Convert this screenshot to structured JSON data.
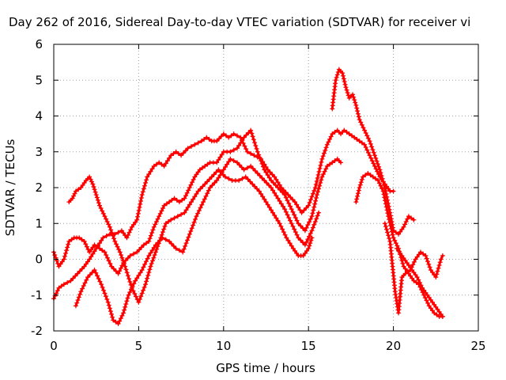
{
  "chart_data": {
    "type": "scatter",
    "title": "Day 262 of 2016, Sidereal Day-to-day VTEC variation (SDTVAR) for receiver vi",
    "xlabel": "GPS time / hours",
    "ylabel": "SDTVAR / TECUs",
    "xlim": [
      0,
      25
    ],
    "ylim": [
      -2,
      6
    ],
    "xticks": [
      0,
      5,
      10,
      15,
      20,
      25
    ],
    "yticks": [
      -2,
      -1,
      0,
      1,
      2,
      3,
      4,
      5,
      6
    ],
    "grid": true,
    "marker": "plus",
    "color": "#ff0000",
    "series": [
      {
        "x": [
          0.0,
          0.3,
          0.6,
          1.0,
          1.4,
          1.8,
          2.1,
          2.5,
          2.9,
          3.3,
          3.6,
          4.0,
          4.3,
          4.6,
          4.9,
          5.2,
          5.5,
          5.9,
          6.2,
          6.5,
          6.9,
          7.2,
          7.5,
          7.9,
          8.3,
          8.7,
          9.0,
          9.3,
          9.6,
          10.0,
          10.3,
          10.6,
          11.0,
          11.4,
          11.8,
          12.2,
          12.6,
          13.0,
          13.4,
          13.8,
          14.2,
          14.6,
          15.0,
          15.4,
          15.8,
          16.1,
          16.4,
          16.7,
          16.9,
          17.1,
          17.4,
          17.7,
          18.0,
          18.3,
          18.6,
          18.9,
          19.2,
          19.5,
          19.8,
          20.0
        ],
        "y": [
          -1.1,
          -0.8,
          -0.7,
          -0.6,
          -0.4,
          -0.2,
          0.0,
          0.3,
          0.6,
          0.7,
          0.7,
          0.8,
          0.6,
          0.9,
          1.1,
          1.8,
          2.3,
          2.6,
          2.7,
          2.6,
          2.9,
          3.0,
          2.9,
          3.1,
          3.2,
          3.3,
          3.4,
          3.3,
          3.3,
          3.5,
          3.4,
          3.5,
          3.4,
          3.0,
          2.9,
          2.8,
          2.5,
          2.3,
          2.0,
          1.8,
          1.6,
          1.3,
          1.5,
          2.0,
          2.8,
          3.2,
          3.5,
          3.6,
          3.5,
          3.6,
          3.5,
          3.4,
          3.3,
          3.2,
          2.9,
          2.6,
          2.3,
          2.1,
          1.9,
          1.9
        ]
      },
      {
        "x": [
          0.0,
          0.3,
          0.6,
          0.9,
          1.2,
          1.5,
          1.8,
          2.1,
          2.4,
          2.7,
          3.0,
          3.4,
          3.8,
          4.1,
          4.5,
          4.9,
          5.3,
          5.6,
          5.9,
          6.2,
          6.5,
          6.8,
          7.1,
          7.4,
          7.7,
          8.0,
          8.3,
          8.6,
          8.9,
          9.2,
          9.6,
          10.0,
          10.4,
          10.8,
          11.2,
          11.6,
          12.0,
          12.4,
          12.8,
          13.2,
          13.6,
          14.0,
          14.4,
          14.8,
          15.2,
          15.5,
          15.8,
          16.1,
          16.4,
          16.7,
          16.9
        ],
        "y": [
          0.2,
          -0.2,
          0.0,
          0.5,
          0.6,
          0.6,
          0.5,
          0.2,
          0.4,
          0.3,
          0.2,
          -0.2,
          -0.4,
          -0.1,
          0.1,
          0.2,
          0.4,
          0.5,
          0.9,
          1.2,
          1.5,
          1.6,
          1.7,
          1.6,
          1.7,
          2.0,
          2.3,
          2.5,
          2.6,
          2.7,
          2.7,
          3.0,
          3.0,
          3.1,
          3.4,
          3.6,
          3.0,
          2.5,
          2.2,
          2.0,
          1.8,
          1.4,
          1.0,
          0.8,
          1.2,
          1.8,
          2.3,
          2.6,
          2.7,
          2.8,
          2.7
        ]
      },
      {
        "x": [
          0.9,
          1.1,
          1.3,
          1.6,
          1.9,
          2.1,
          2.3,
          2.5,
          2.7,
          3.0,
          3.3,
          3.6,
          3.9,
          4.2,
          4.6,
          5.0,
          5.4,
          5.7,
          6.0,
          6.3,
          6.6,
          6.9,
          7.3,
          7.7,
          8.1,
          8.5,
          8.9,
          9.3,
          9.7,
          10.1,
          10.5,
          10.9,
          11.3,
          11.7,
          12.1,
          12.5,
          12.9,
          13.3,
          13.7,
          14.1,
          14.4,
          14.7,
          15.0,
          15.2
        ],
        "y": [
          1.6,
          1.7,
          1.9,
          2.0,
          2.2,
          2.3,
          2.1,
          1.8,
          1.5,
          1.2,
          0.9,
          0.5,
          0.2,
          -0.2,
          -0.8,
          -1.2,
          -0.7,
          -0.2,
          0.2,
          0.6,
          1.0,
          1.1,
          1.2,
          1.3,
          1.6,
          1.9,
          2.1,
          2.3,
          2.5,
          2.3,
          2.2,
          2.2,
          2.3,
          2.1,
          1.9,
          1.6,
          1.3,
          1.0,
          0.6,
          0.3,
          0.1,
          0.1,
          0.3,
          0.6
        ]
      },
      {
        "x": [
          1.3,
          1.6,
          2.0,
          2.4,
          2.8,
          3.2,
          3.5,
          3.8,
          4.1,
          4.4,
          4.8,
          5.2,
          5.6,
          6.0,
          6.4,
          6.8,
          7.2,
          7.6,
          8.0,
          8.4,
          8.8,
          9.2,
          9.6,
          10.0,
          10.4,
          10.8,
          11.2,
          11.6,
          12.0,
          12.4,
          12.8,
          13.2,
          13.6,
          14.0,
          14.4,
          14.8,
          15.2,
          15.6
        ],
        "y": [
          -1.3,
          -0.9,
          -0.5,
          -0.3,
          -0.7,
          -1.2,
          -1.7,
          -1.8,
          -1.5,
          -1.0,
          -0.6,
          -0.3,
          0.1,
          0.4,
          0.6,
          0.5,
          0.3,
          0.2,
          0.7,
          1.2,
          1.6,
          2.0,
          2.2,
          2.5,
          2.8,
          2.7,
          2.5,
          2.6,
          2.4,
          2.2,
          2.0,
          1.7,
          1.4,
          1.0,
          0.6,
          0.4,
          0.8,
          1.3
        ]
      },
      {
        "x": [
          16.4,
          16.6,
          16.8,
          17.0,
          17.2,
          17.4,
          17.6,
          17.8,
          18.0,
          18.3,
          18.6,
          18.9,
          19.2,
          19.5,
          19.8,
          20.0,
          20.3,
          20.6,
          20.9,
          21.2
        ],
        "y": [
          4.2,
          5.0,
          5.3,
          5.2,
          4.8,
          4.5,
          4.6,
          4.3,
          3.9,
          3.6,
          3.3,
          2.9,
          2.5,
          2.0,
          1.3,
          0.8,
          0.7,
          0.9,
          1.2,
          1.1
        ]
      },
      {
        "x": [
          17.8,
          18.0,
          18.2,
          18.5,
          18.8,
          19.1,
          19.4,
          19.7,
          20.0,
          20.3,
          20.6,
          20.9,
          21.2,
          21.5,
          21.8,
          22.1,
          22.4,
          22.7,
          22.9
        ],
        "y": [
          1.6,
          2.0,
          2.3,
          2.4,
          2.3,
          2.2,
          1.9,
          1.2,
          0.6,
          0.3,
          -0.2,
          -0.4,
          -0.6,
          -0.7,
          -1.0,
          -1.3,
          -1.5,
          -1.6,
          -1.6
        ]
      },
      {
        "x": [
          19.5,
          19.8,
          20.1,
          20.3,
          20.5,
          20.7,
          21.0,
          21.3,
          21.6,
          21.9,
          22.2,
          22.5,
          22.8,
          22.9
        ],
        "y": [
          1.0,
          0.5,
          -0.9,
          -1.5,
          -0.5,
          -0.4,
          -0.3,
          0.0,
          0.2,
          0.1,
          -0.3,
          -0.5,
          0.0,
          0.1
        ]
      },
      {
        "x": [
          20.2,
          20.5,
          20.8,
          21.1,
          21.4,
          21.7,
          22.0,
          22.3,
          22.6,
          22.9
        ],
        "y": [
          0.3,
          0.1,
          -0.1,
          -0.3,
          -0.5,
          -0.8,
          -1.0,
          -1.2,
          -1.4,
          -1.6
        ]
      }
    ]
  }
}
